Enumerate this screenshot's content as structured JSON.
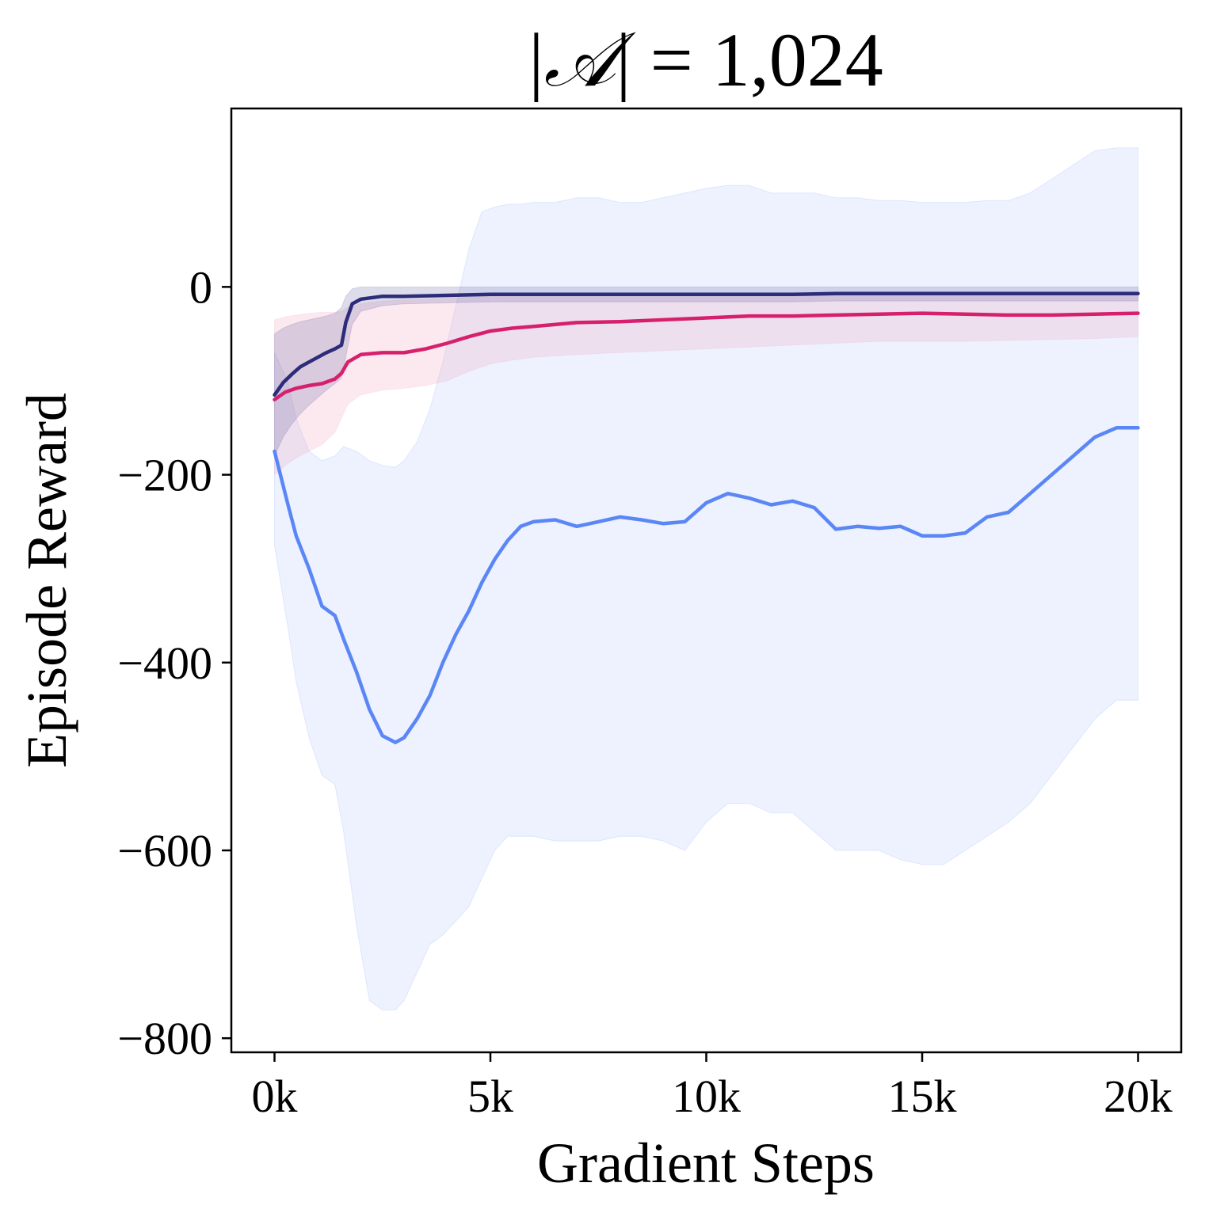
{
  "chart_data": {
    "type": "line",
    "title_prefix": "|",
    "title_symbol": "𝒜",
    "title_suffix": "| =  1,024",
    "xlabel": "Gradient Steps",
    "ylabel": "Episode Reward",
    "xlim": [
      -1000,
      21000
    ],
    "ylim": [
      -815,
      190
    ],
    "xticks": [
      0,
      5000,
      10000,
      15000,
      20000
    ],
    "xtick_labels": [
      "0k",
      "5k",
      "10k",
      "15k",
      "20k"
    ],
    "yticks": [
      -800,
      -600,
      -400,
      -200,
      0
    ],
    "ytick_labels": [
      "−800",
      "−600",
      "−400",
      "−200",
      "0"
    ],
    "grid": false,
    "legend": "none",
    "series": [
      {
        "color": "#5b86f5",
        "band_color": "#5b86f5",
        "band_opacity": 0.11,
        "x": [
          0,
          300,
          500,
          800,
          1100,
          1400,
          1600,
          1900,
          2200,
          2500,
          2800,
          3000,
          3300,
          3600,
          3900,
          4200,
          4500,
          4800,
          5100,
          5400,
          5700,
          6000,
          6500,
          7000,
          7500,
          8000,
          8500,
          9000,
          9500,
          10000,
          10500,
          11000,
          11500,
          12000,
          12500,
          13000,
          13500,
          14000,
          14500,
          15000,
          15500,
          16000,
          16500,
          17000,
          17500,
          18000,
          18500,
          19000,
          19500,
          20000
        ],
        "y": [
          -175,
          -230,
          -265,
          -300,
          -340,
          -350,
          -375,
          -410,
          -450,
          -478,
          -485,
          -480,
          -460,
          -435,
          -400,
          -370,
          -345,
          -315,
          -290,
          -270,
          -255,
          -250,
          -248,
          -255,
          -250,
          -245,
          -248,
          -252,
          -250,
          -230,
          -220,
          -225,
          -232,
          -228,
          -235,
          -258,
          -255,
          -257,
          -255,
          -265,
          -265,
          -262,
          -245,
          -240,
          -220,
          -200,
          -180,
          -160,
          -150,
          -150
        ],
        "upper": [
          -70,
          -100,
          -140,
          -175,
          -185,
          -180,
          -170,
          -175,
          -185,
          -190,
          -192,
          -185,
          -165,
          -130,
          -80,
          -20,
          40,
          80,
          85,
          88,
          88,
          90,
          90,
          95,
          95,
          90,
          90,
          95,
          100,
          105,
          108,
          108,
          100,
          100,
          100,
          95,
          95,
          92,
          92,
          90,
          90,
          90,
          92,
          92,
          100,
          115,
          130,
          145,
          148,
          148
        ],
        "lower": [
          -275,
          -360,
          -420,
          -480,
          -520,
          -530,
          -580,
          -680,
          -760,
          -770,
          -770,
          -760,
          -730,
          -700,
          -690,
          -675,
          -660,
          -630,
          -600,
          -585,
          -585,
          -585,
          -590,
          -590,
          -590,
          -585,
          -585,
          -590,
          -600,
          -570,
          -550,
          -550,
          -560,
          -560,
          -580,
          -600,
          -600,
          -600,
          -610,
          -615,
          -615,
          -600,
          -585,
          -570,
          -550,
          -520,
          -490,
          -460,
          -440,
          -440
        ]
      },
      {
        "color": "#d6206d",
        "band_color": "#f19bb8",
        "band_opacity": 0.22,
        "x": [
          0,
          250,
          500,
          800,
          1100,
          1400,
          1550,
          1700,
          2000,
          2500,
          3000,
          3500,
          4000,
          4500,
          5000,
          5500,
          6000,
          7000,
          8000,
          9000,
          10000,
          11000,
          12000,
          13000,
          14000,
          15000,
          16000,
          17000,
          18000,
          19000,
          20000
        ],
        "y": [
          -120,
          -112,
          -108,
          -105,
          -103,
          -98,
          -92,
          -80,
          -72,
          -70,
          -70,
          -66,
          -60,
          -53,
          -47,
          -44,
          -42,
          -38,
          -37,
          -35,
          -33,
          -31,
          -31,
          -30,
          -29,
          -28,
          -29,
          -30,
          -30,
          -29,
          -28
        ],
        "upper": [
          -35,
          -32,
          -30,
          -28,
          -27,
          -27,
          -26,
          -22,
          -18,
          -15,
          -14,
          -13,
          -12,
          -11,
          -10,
          -9,
          -8,
          -7,
          -7,
          -7,
          -7,
          -7,
          -7,
          -7,
          -7,
          -7,
          -7,
          -7,
          -7,
          -7,
          -7
        ],
        "lower": [
          -200,
          -190,
          -182,
          -175,
          -168,
          -155,
          -140,
          -125,
          -115,
          -110,
          -108,
          -105,
          -100,
          -90,
          -82,
          -78,
          -75,
          -72,
          -70,
          -68,
          -66,
          -64,
          -62,
          -60,
          -58,
          -58,
          -58,
          -57,
          -56,
          -55,
          -53
        ]
      },
      {
        "color": "#2c2c78",
        "band_color": "#3b3b8c",
        "band_opacity": 0.18,
        "x": [
          0,
          200,
          400,
          600,
          800,
          1000,
          1200,
          1400,
          1550,
          1650,
          1800,
          2000,
          2500,
          3000,
          4000,
          5000,
          6000,
          7000,
          8000,
          9000,
          10000,
          11000,
          12000,
          13000,
          14000,
          15000,
          16000,
          17000,
          18000,
          19000,
          20000
        ],
        "y": [
          -115,
          -102,
          -93,
          -85,
          -80,
          -75,
          -70,
          -66,
          -62,
          -38,
          -18,
          -13,
          -10,
          -10,
          -9,
          -8,
          -8,
          -8,
          -8,
          -8,
          -8,
          -8,
          -8,
          -7,
          -7,
          -7,
          -7,
          -7,
          -7,
          -7,
          -7
        ],
        "upper": [
          -50,
          -44,
          -40,
          -37,
          -35,
          -33,
          -31,
          -28,
          -22,
          -10,
          -2,
          0,
          0,
          0,
          0,
          0,
          0,
          0,
          0,
          0,
          0,
          0,
          0,
          0,
          0,
          0,
          0,
          0,
          0,
          0,
          0
        ],
        "lower": [
          -180,
          -160,
          -146,
          -135,
          -126,
          -118,
          -110,
          -103,
          -97,
          -75,
          -40,
          -26,
          -20,
          -18,
          -17,
          -16,
          -16,
          -16,
          -16,
          -16,
          -16,
          -16,
          -16,
          -15,
          -15,
          -15,
          -15,
          -15,
          -15,
          -15,
          -15
        ]
      }
    ]
  }
}
